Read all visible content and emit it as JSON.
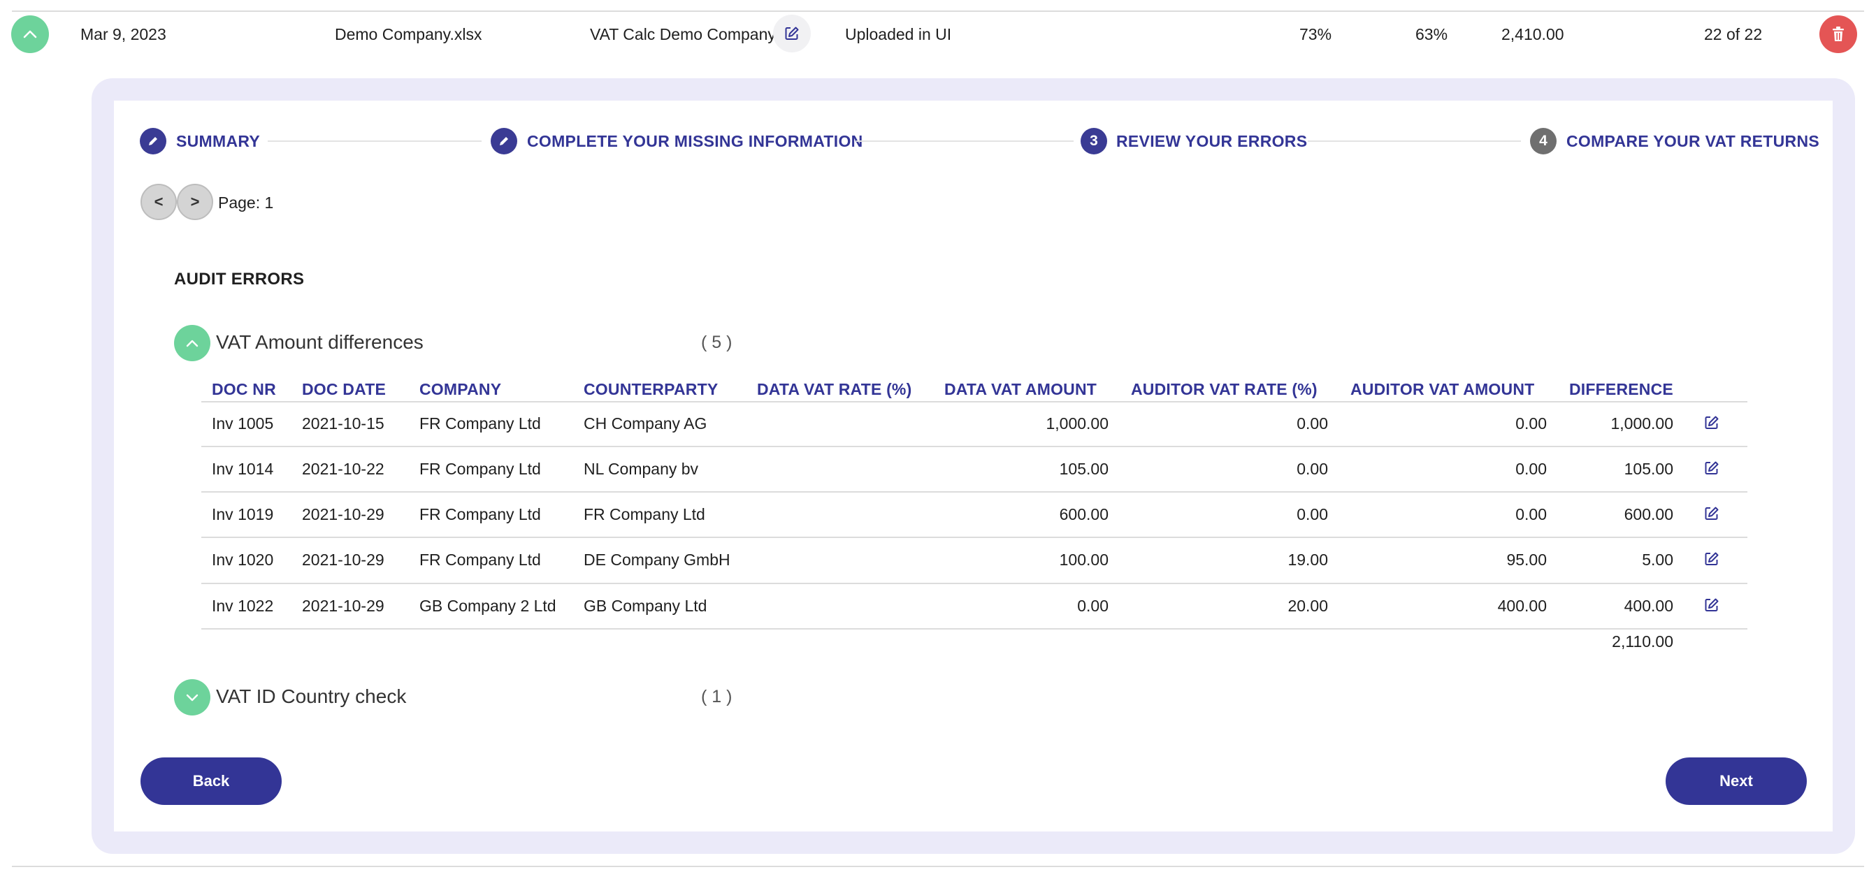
{
  "upload_row": {
    "date": "Mar 9, 2023",
    "file_name": "Demo Company.xlsx",
    "company": "VAT Calc Demo Company",
    "source": "Uploaded in UI",
    "percent_1": "73%",
    "percent_2": "63%",
    "amount": "2,410.00",
    "progress": "22 of 22"
  },
  "stepper": {
    "steps": [
      {
        "label": "SUMMARY",
        "marker": "",
        "state": "done"
      },
      {
        "label": "COMPLETE YOUR MISSING INFORMATION",
        "marker": "",
        "state": "done"
      },
      {
        "label": "REVIEW YOUR ERRORS",
        "marker": "3",
        "state": "active"
      },
      {
        "label": "COMPARE YOUR VAT RETURNS",
        "marker": "4",
        "state": "pending"
      }
    ]
  },
  "pager": {
    "prev_label": "<",
    "next_label": ">",
    "page_text": "Page: 1"
  },
  "section_title": "AUDIT ERRORS",
  "groups": [
    {
      "label": "VAT Amount differences",
      "count": "( 5 )",
      "expanded": true
    },
    {
      "label": "VAT ID Country check",
      "count": "( 1 )",
      "expanded": false
    }
  ],
  "table": {
    "columns": [
      "DOC NR",
      "DOC DATE",
      "COMPANY",
      "COUNTERPARTY",
      "DATA VAT RATE (%)",
      "DATA VAT AMOUNT",
      "AUDITOR VAT RATE (%)",
      "AUDITOR VAT AMOUNT",
      "DIFFERENCE"
    ],
    "rows": [
      {
        "doc_nr": "Inv 1005",
        "doc_date": "2021-10-15",
        "company": "FR Company Ltd",
        "counterparty": "CH Company AG",
        "data_vat_rate": "",
        "data_vat_amount": "1,000.00",
        "auditor_vat_rate": "0.00",
        "auditor_vat_amount": "0.00",
        "difference": "1,000.00"
      },
      {
        "doc_nr": "Inv 1014",
        "doc_date": "2021-10-22",
        "company": "FR Company Ltd",
        "counterparty": "NL Company bv",
        "data_vat_rate": "",
        "data_vat_amount": "105.00",
        "auditor_vat_rate": "0.00",
        "auditor_vat_amount": "0.00",
        "difference": "105.00"
      },
      {
        "doc_nr": "Inv 1019",
        "doc_date": "2021-10-29",
        "company": "FR Company Ltd",
        "counterparty": "FR Company Ltd",
        "data_vat_rate": "",
        "data_vat_amount": "600.00",
        "auditor_vat_rate": "0.00",
        "auditor_vat_amount": "0.00",
        "difference": "600.00"
      },
      {
        "doc_nr": "Inv 1020",
        "doc_date": "2021-10-29",
        "company": "FR Company Ltd",
        "counterparty": "DE Company GmbH",
        "data_vat_rate": "",
        "data_vat_amount": "100.00",
        "auditor_vat_rate": "19.00",
        "auditor_vat_amount": "95.00",
        "difference": "5.00"
      },
      {
        "doc_nr": "Inv 1022",
        "doc_date": "2021-10-29",
        "company": "GB Company 2 Ltd",
        "counterparty": "GB Company Ltd",
        "data_vat_rate": "",
        "data_vat_amount": "0.00",
        "auditor_vat_rate": "20.00",
        "auditor_vat_amount": "400.00",
        "difference": "400.00"
      }
    ],
    "total": "2,110.00"
  },
  "buttons": {
    "back": "Back",
    "next": "Next"
  },
  "colors": {
    "accent": "#333596",
    "success": "#6dd39b",
    "danger": "#e45555",
    "panel": "#ebeaf9"
  },
  "icons": {
    "collapse": "chevron-up-icon",
    "expand": "chevron-down-icon",
    "edit": "edit-icon",
    "delete": "trash-icon",
    "step_done": "pencil-icon"
  }
}
